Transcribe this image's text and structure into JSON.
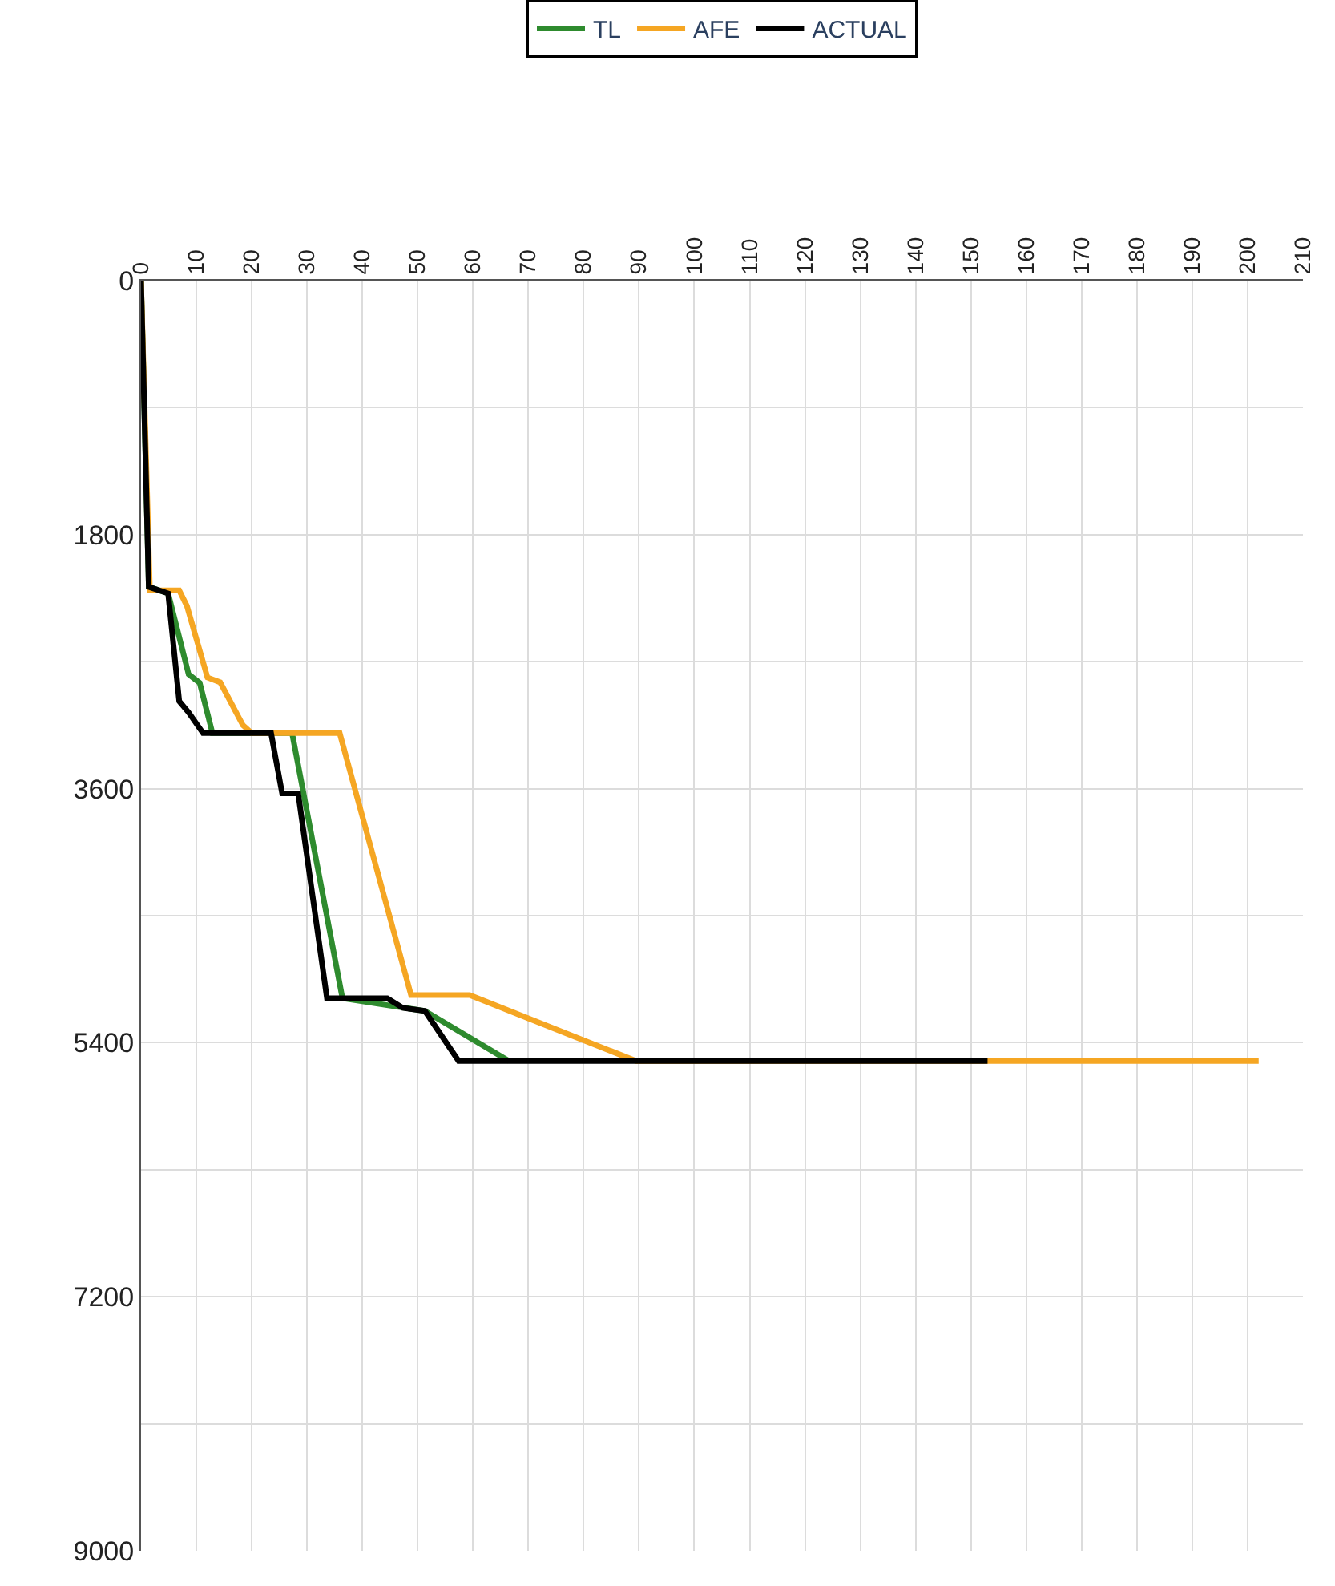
{
  "chart_data": {
    "type": "line",
    "series": [
      {
        "name": "TL",
        "color": "#2e8b2e",
        "x": [
          0,
          1.4,
          4.9,
          8.6,
          10.6,
          12.9,
          27.3,
          36.4,
          51.3,
          66.5
        ],
        "values": [
          0,
          2170,
          2216,
          2790,
          2850,
          3206,
          3206,
          5085,
          5175,
          5530
        ]
      },
      {
        "name": "AFE",
        "color": "#f5a623",
        "x": [
          0,
          1.6,
          6.9,
          8.3,
          12,
          14.3,
          18.4,
          20,
          35.9,
          48.8,
          59.4,
          89.5,
          202
        ],
        "values": [
          0,
          2194,
          2194,
          2306,
          2812,
          2846,
          3150,
          3206,
          3206,
          5063,
          5063,
          5530,
          5530
        ]
      },
      {
        "name": "ACTUAL",
        "color": "#000000",
        "x": [
          0,
          1.4,
          4.9,
          6.9,
          8.6,
          11.2,
          23.5,
          25.5,
          28.4,
          33.6,
          44.5,
          47.3,
          51.3,
          57.4,
          153
        ],
        "values": [
          0,
          2170,
          2216,
          2980,
          3060,
          3206,
          3206,
          3634,
          3634,
          5085,
          5085,
          5153,
          5175,
          5530,
          5530
        ]
      }
    ],
    "xlim": [
      0,
      210
    ],
    "xticks": [
      0,
      10,
      20,
      30,
      40,
      50,
      60,
      70,
      80,
      90,
      100,
      110,
      120,
      130,
      140,
      150,
      160,
      170,
      180,
      190,
      200,
      210
    ],
    "ylim": [
      9000,
      0
    ],
    "yticks": [
      0,
      {
        "value": 900,
        "label": null
      },
      1800,
      {
        "value": 2700,
        "label": null
      },
      3600,
      {
        "value": 4500,
        "label": null
      },
      5400,
      {
        "value": 6300,
        "label": null
      },
      7200,
      {
        "value": 8100,
        "label": null
      },
      9000
    ],
    "grid": true,
    "legend": "top",
    "marker": "none",
    "line_style": "solid"
  }
}
